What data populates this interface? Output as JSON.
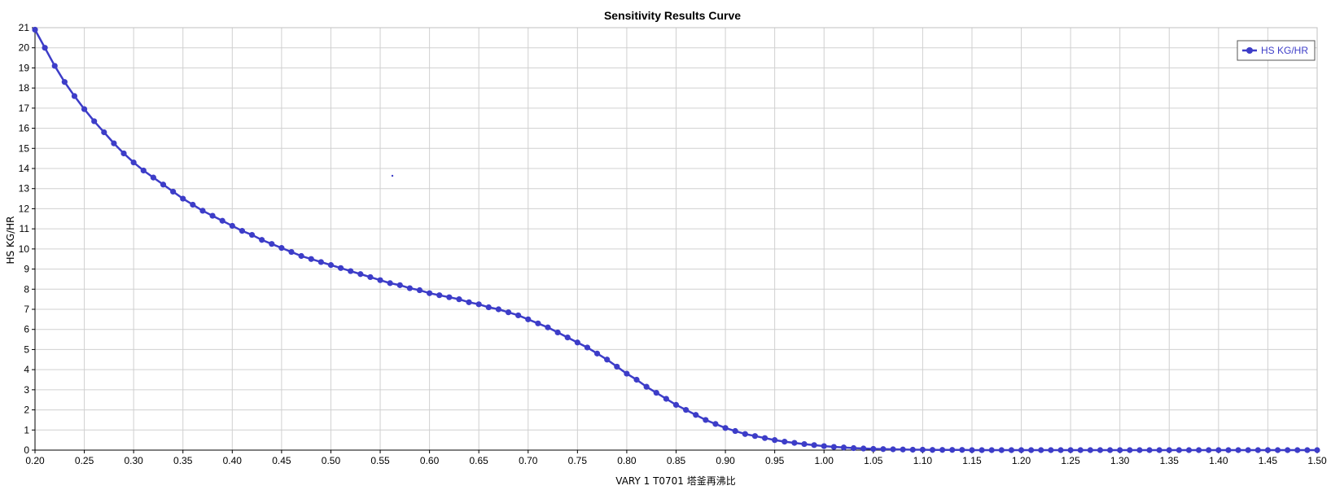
{
  "chart_data": {
    "type": "line",
    "title": "Sensitivity Results Curve",
    "xlabel": "VARY   1 T0701 塔釜再沸比",
    "ylabel": "HS KG/HR",
    "xlim": [
      0.2,
      1.5
    ],
    "ylim": [
      0,
      21
    ],
    "x_ticks": [
      "0.20",
      "0.25",
      "0.30",
      "0.35",
      "0.40",
      "0.45",
      "0.50",
      "0.55",
      "0.60",
      "0.65",
      "0.70",
      "0.75",
      "0.80",
      "0.85",
      "0.90",
      "0.95",
      "1.00",
      "1.05",
      "1.10",
      "1.15",
      "1.20",
      "1.25",
      "1.30",
      "1.35",
      "1.40",
      "1.45",
      "1.50"
    ],
    "y_ticks": [
      "0",
      "1",
      "2",
      "3",
      "4",
      "5",
      "6",
      "7",
      "8",
      "9",
      "10",
      "11",
      "12",
      "13",
      "14",
      "15",
      "16",
      "17",
      "18",
      "19",
      "20",
      "21"
    ],
    "grid": true,
    "legend_position": "top-right",
    "colors": {
      "series": "#3d3dc8",
      "grid": "#d0d0d0"
    },
    "series": [
      {
        "name": "HS KG/HR",
        "x": [
          0.2,
          0.21,
          0.22,
          0.23,
          0.24,
          0.25,
          0.26,
          0.27,
          0.28,
          0.29,
          0.3,
          0.31,
          0.32,
          0.33,
          0.34,
          0.35,
          0.36,
          0.37,
          0.38,
          0.39,
          0.4,
          0.41,
          0.42,
          0.43,
          0.44,
          0.45,
          0.46,
          0.47,
          0.48,
          0.49,
          0.5,
          0.51,
          0.52,
          0.53,
          0.54,
          0.55,
          0.56,
          0.57,
          0.58,
          0.59,
          0.6,
          0.61,
          0.62,
          0.63,
          0.64,
          0.65,
          0.66,
          0.67,
          0.68,
          0.69,
          0.7,
          0.71,
          0.72,
          0.73,
          0.74,
          0.75,
          0.76,
          0.77,
          0.78,
          0.79,
          0.8,
          0.81,
          0.82,
          0.83,
          0.84,
          0.85,
          0.86,
          0.87,
          0.88,
          0.89,
          0.9,
          0.91,
          0.92,
          0.93,
          0.94,
          0.95,
          0.96,
          0.97,
          0.98,
          0.99,
          1.0,
          1.01,
          1.02,
          1.03,
          1.04,
          1.05,
          1.06,
          1.07,
          1.08,
          1.09,
          1.1,
          1.11,
          1.12,
          1.13,
          1.14,
          1.15,
          1.16,
          1.17,
          1.18,
          1.19,
          1.2,
          1.21,
          1.22,
          1.23,
          1.24,
          1.25,
          1.26,
          1.27,
          1.28,
          1.29,
          1.3,
          1.31,
          1.32,
          1.33,
          1.34,
          1.35,
          1.36,
          1.37,
          1.38,
          1.39,
          1.4,
          1.41,
          1.42,
          1.43,
          1.44,
          1.45,
          1.46,
          1.47,
          1.48,
          1.49,
          1.5
        ],
        "y": [
          20.9,
          20.0,
          19.1,
          18.3,
          17.6,
          16.95,
          16.35,
          15.8,
          15.25,
          14.75,
          14.3,
          13.9,
          13.55,
          13.2,
          12.85,
          12.5,
          12.2,
          11.9,
          11.65,
          11.4,
          11.15,
          10.9,
          10.7,
          10.45,
          10.25,
          10.05,
          9.85,
          9.65,
          9.5,
          9.35,
          9.2,
          9.05,
          8.9,
          8.75,
          8.6,
          8.45,
          8.3,
          8.2,
          8.05,
          7.95,
          7.8,
          7.7,
          7.6,
          7.5,
          7.35,
          7.25,
          7.1,
          7.0,
          6.85,
          6.7,
          6.5,
          6.3,
          6.1,
          5.85,
          5.6,
          5.35,
          5.1,
          4.8,
          4.5,
          4.15,
          3.8,
          3.5,
          3.15,
          2.85,
          2.55,
          2.25,
          2.0,
          1.75,
          1.5,
          1.3,
          1.1,
          0.95,
          0.8,
          0.7,
          0.6,
          0.5,
          0.42,
          0.36,
          0.3,
          0.25,
          0.2,
          0.16,
          0.13,
          0.1,
          0.08,
          0.06,
          0.05,
          0.04,
          0.03,
          0.02,
          0.02,
          0.01,
          0.01,
          0.01,
          0.01,
          0.0,
          0.0,
          0.0,
          0.0,
          0.0,
          0.0,
          0.0,
          0.0,
          0.0,
          0.0,
          0.0,
          0.0,
          0.0,
          0.0,
          0.0,
          0.0,
          0.0,
          0.0,
          0.0,
          0.0,
          0.0,
          0.0,
          0.0,
          0.0,
          0.0,
          0.0,
          0.0,
          0.0,
          0.0,
          0.0,
          0.0,
          0.0,
          0.0,
          0.0,
          0.0,
          0.0
        ]
      }
    ]
  }
}
